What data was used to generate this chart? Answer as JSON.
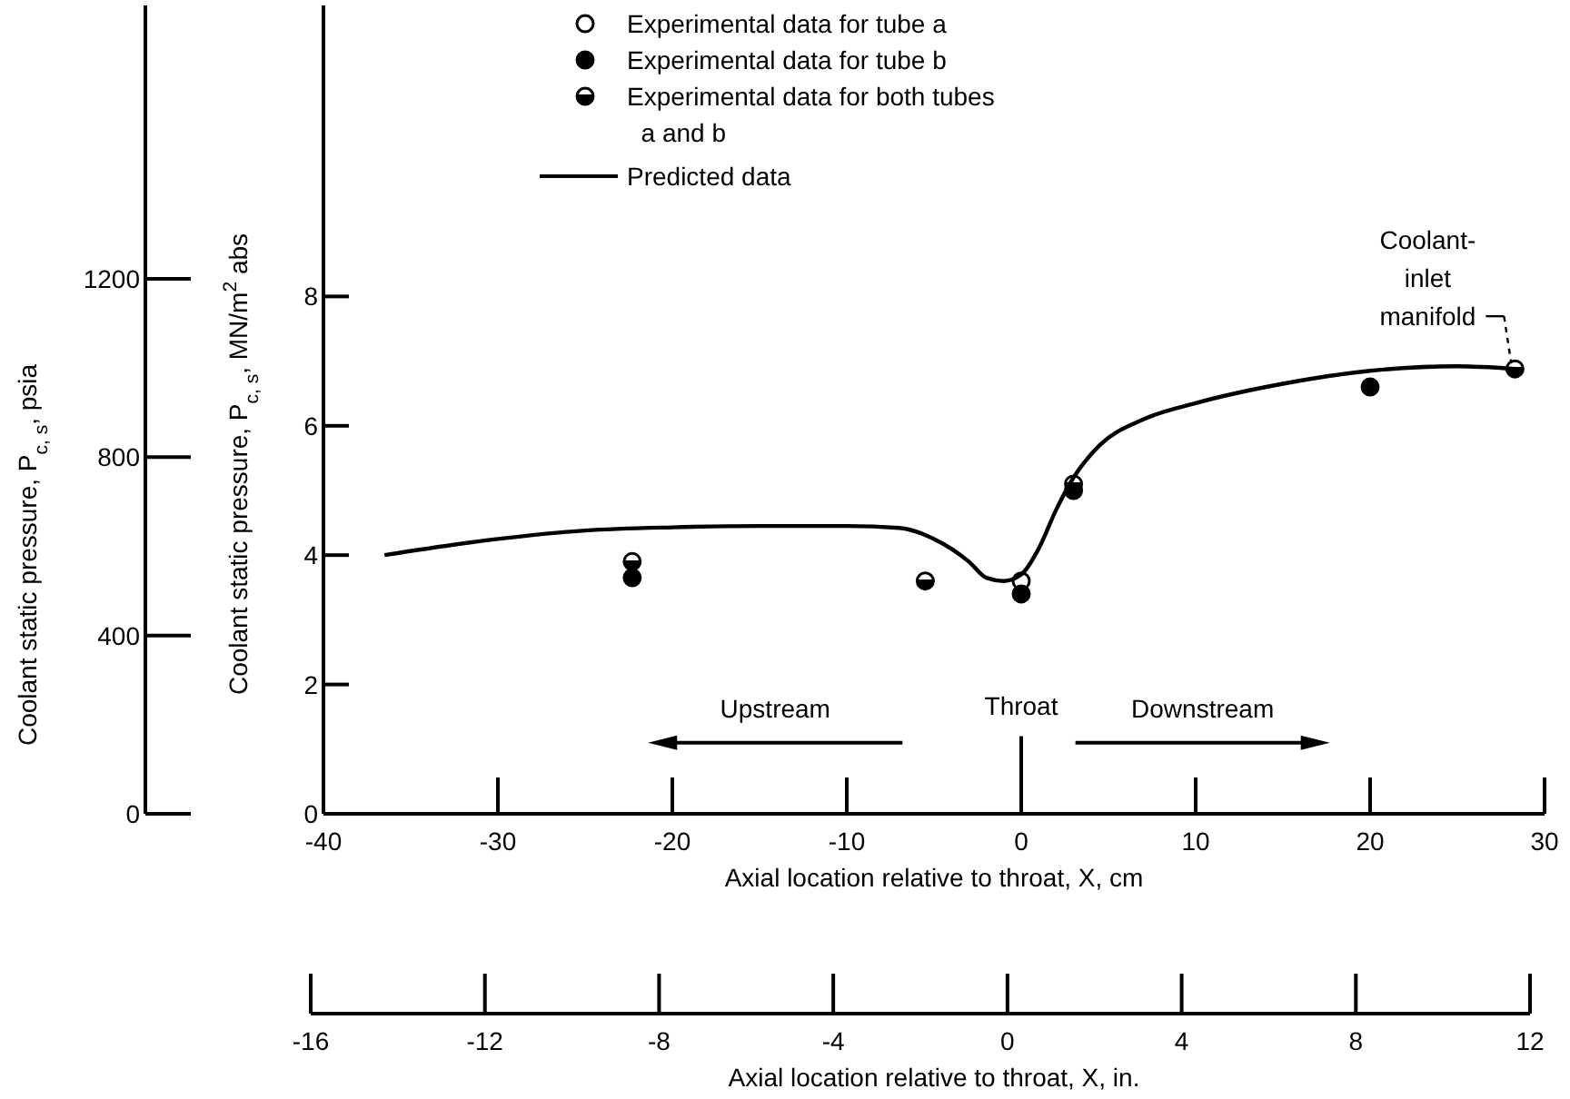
{
  "chart_data": {
    "type": "scatter",
    "xlabel": "Axial location relative to throat, X, cm",
    "x2label": "Axial location relative to throat, X, in.",
    "ylabel": "Coolant static pressure, P$_{c, s}$, MN/m$^{2}$ abs",
    "y2label": "Coolant static pressure, P$_{c, s}$, psia",
    "xlim": [
      -40,
      30
    ],
    "xticks": [
      -40,
      -30,
      -20,
      -10,
      0,
      10,
      20,
      30
    ],
    "x2lim": [
      -16,
      12
    ],
    "x2ticks": [
      -16,
      -12,
      -8,
      -4,
      0,
      4,
      8,
      12
    ],
    "ylim": [
      0,
      12.5
    ],
    "yticks": [
      0,
      2,
      4,
      6,
      8
    ],
    "y2lim": [
      0,
      1813
    ],
    "y2ticks": [
      0,
      400,
      800,
      1200
    ],
    "legend": "top",
    "grid": false,
    "series": [
      {
        "name": "Experimental data for tube a",
        "marker": "circle",
        "color": "#000000",
        "x": [
          0
        ],
        "values": [
          3.6
        ]
      },
      {
        "name": "Experimental data for tube b",
        "marker": "circle",
        "color": "#000000",
        "x": [
          -22.3,
          0,
          20
        ],
        "values": [
          3.65,
          3.4,
          6.6
        ]
      },
      {
        "name": "Experimental data for both tubes a and b",
        "marker": "circle",
        "color": "#000000",
        "x": [
          -22.3,
          -5.5,
          3,
          3,
          28.3
        ],
        "values": [
          3.9,
          3.6,
          5.0,
          5.1,
          6.88
        ]
      },
      {
        "name": "Predicted data",
        "type": "line",
        "marker": "none",
        "line_style": "solid",
        "color": "#000000",
        "x": [
          -36.5,
          -30,
          -25,
          -20,
          -15,
          -10,
          -7,
          -5,
          -3,
          -2,
          -1,
          0,
          1,
          2,
          3,
          4.5,
          7,
          10,
          15,
          20,
          25,
          28.3
        ],
        "values": [
          4.0,
          4.25,
          4.38,
          4.43,
          4.45,
          4.45,
          4.42,
          4.25,
          3.9,
          3.65,
          3.6,
          3.7,
          4.1,
          4.7,
          5.2,
          5.7,
          6.1,
          6.35,
          6.65,
          6.85,
          6.92,
          6.88
        ]
      }
    ],
    "ref_lines": [
      {
        "axis": "x",
        "value": 0,
        "label": "Throat"
      }
    ],
    "annotations": [
      {
        "text": "Coolant-inlet manifold",
        "x": 28.3,
        "y": 6.88
      },
      "Upstream",
      "Downstream"
    ]
  }
}
